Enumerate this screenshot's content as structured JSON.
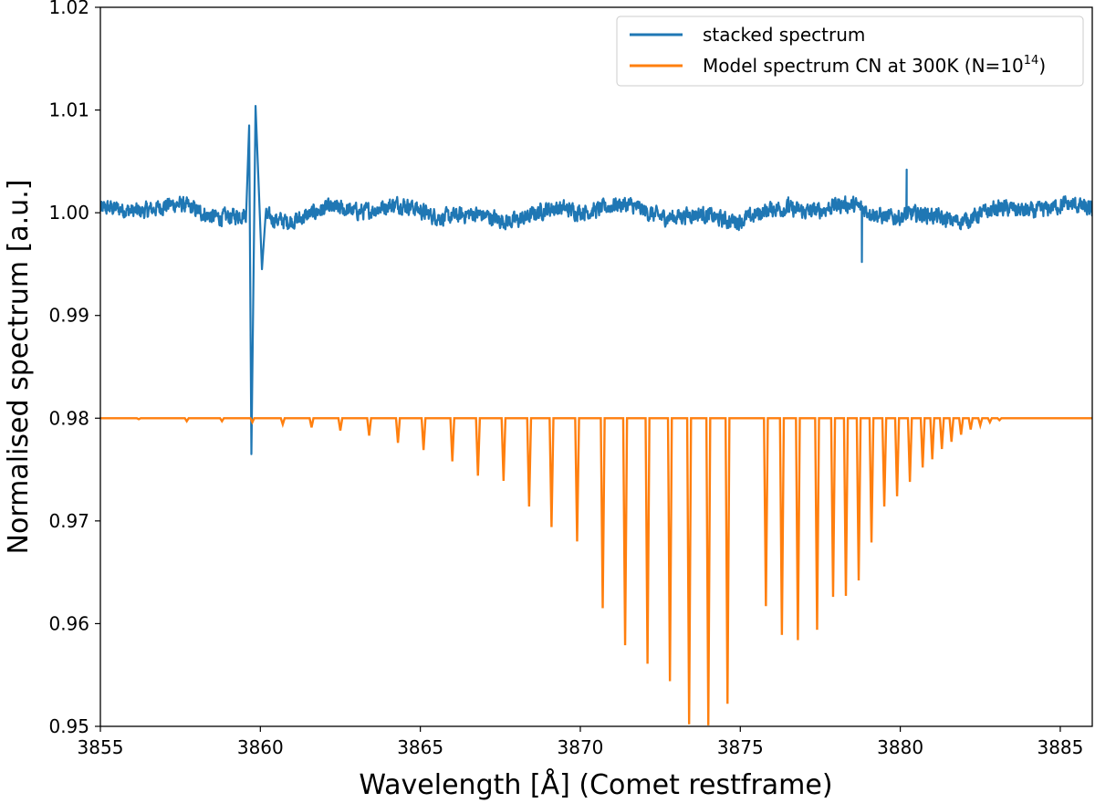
{
  "chart_data": {
    "type": "line",
    "title": "",
    "xlabel": "Wavelength [Å] (Comet restframe)",
    "ylabel": "Normalised spectrum [a.u.]",
    "xlim": [
      3855,
      3886
    ],
    "ylim": [
      0.95,
      1.02
    ],
    "xticks": [
      3855,
      3860,
      3865,
      3870,
      3875,
      3880,
      3885
    ],
    "xtick_labels": [
      "3855",
      "3860",
      "3865",
      "3870",
      "3875",
      "3880",
      "3885"
    ],
    "yticks": [
      0.95,
      0.96,
      0.97,
      0.98,
      0.99,
      1.0,
      1.01,
      1.02
    ],
    "ytick_labels": [
      "0.95",
      "0.96",
      "0.97",
      "0.98",
      "0.99",
      "1.00",
      "1.01",
      "1.02"
    ],
    "grid": false,
    "legend_position": "top-right",
    "series": [
      {
        "name": "stacked spectrum",
        "color": "#1f77b4",
        "baseline": 1.0,
        "noise_amplitude": 0.0012,
        "features": [
          {
            "x": 3859.65,
            "y": 1.0085
          },
          {
            "x": 3859.72,
            "y": 0.9765
          },
          {
            "x": 3859.85,
            "y": 1.0104
          },
          {
            "x": 3860.05,
            "y": 0.9945
          },
          {
            "x": 3876.5,
            "y": 1.0015
          },
          {
            "x": 3878.8,
            "y": 0.9952
          },
          {
            "x": 3880.2,
            "y": 1.0042
          }
        ]
      },
      {
        "name": "Model spectrum CN at 300K (N=10",
        "legend_superscript": "14",
        "legend_suffix": ")",
        "color": "#ff7f0e",
        "continuum": 0.98,
        "lines": [
          {
            "x": 3856.2,
            "y": 0.9799
          },
          {
            "x": 3857.7,
            "y": 0.9797
          },
          {
            "x": 3858.8,
            "y": 0.9797
          },
          {
            "x": 3859.75,
            "y": 0.9796
          },
          {
            "x": 3860.7,
            "y": 0.9794
          },
          {
            "x": 3861.6,
            "y": 0.9791
          },
          {
            "x": 3862.5,
            "y": 0.9788
          },
          {
            "x": 3863.4,
            "y": 0.9783
          },
          {
            "x": 3864.3,
            "y": 0.9776
          },
          {
            "x": 3865.1,
            "y": 0.9769
          },
          {
            "x": 3866.0,
            "y": 0.9758
          },
          {
            "x": 3866.8,
            "y": 0.9744
          },
          {
            "x": 3867.6,
            "y": 0.9739
          },
          {
            "x": 3868.4,
            "y": 0.9714
          },
          {
            "x": 3869.1,
            "y": 0.9694
          },
          {
            "x": 3869.9,
            "y": 0.968
          },
          {
            "x": 3870.7,
            "y": 0.9615
          },
          {
            "x": 3871.4,
            "y": 0.9579
          },
          {
            "x": 3872.1,
            "y": 0.9561
          },
          {
            "x": 3872.8,
            "y": 0.9544
          },
          {
            "x": 3873.4,
            "y": 0.9502
          },
          {
            "x": 3874.0,
            "y": 0.9501
          },
          {
            "x": 3874.6,
            "y": 0.9522
          },
          {
            "x": 3875.8,
            "y": 0.9617
          },
          {
            "x": 3876.3,
            "y": 0.9589
          },
          {
            "x": 3876.8,
            "y": 0.9584
          },
          {
            "x": 3877.4,
            "y": 0.9594
          },
          {
            "x": 3877.9,
            "y": 0.9626
          },
          {
            "x": 3878.3,
            "y": 0.9627
          },
          {
            "x": 3878.7,
            "y": 0.9642
          },
          {
            "x": 3879.1,
            "y": 0.9679
          },
          {
            "x": 3879.5,
            "y": 0.9714
          },
          {
            "x": 3879.9,
            "y": 0.9724
          },
          {
            "x": 3880.3,
            "y": 0.9738
          },
          {
            "x": 3880.7,
            "y": 0.9752
          },
          {
            "x": 3881.0,
            "y": 0.976
          },
          {
            "x": 3881.3,
            "y": 0.977
          },
          {
            "x": 3881.6,
            "y": 0.9777
          },
          {
            "x": 3881.9,
            "y": 0.9784
          },
          {
            "x": 3882.2,
            "y": 0.9789
          },
          {
            "x": 3882.5,
            "y": 0.9793
          },
          {
            "x": 3882.8,
            "y": 0.9796
          },
          {
            "x": 3883.1,
            "y": 0.9798
          }
        ]
      }
    ]
  }
}
